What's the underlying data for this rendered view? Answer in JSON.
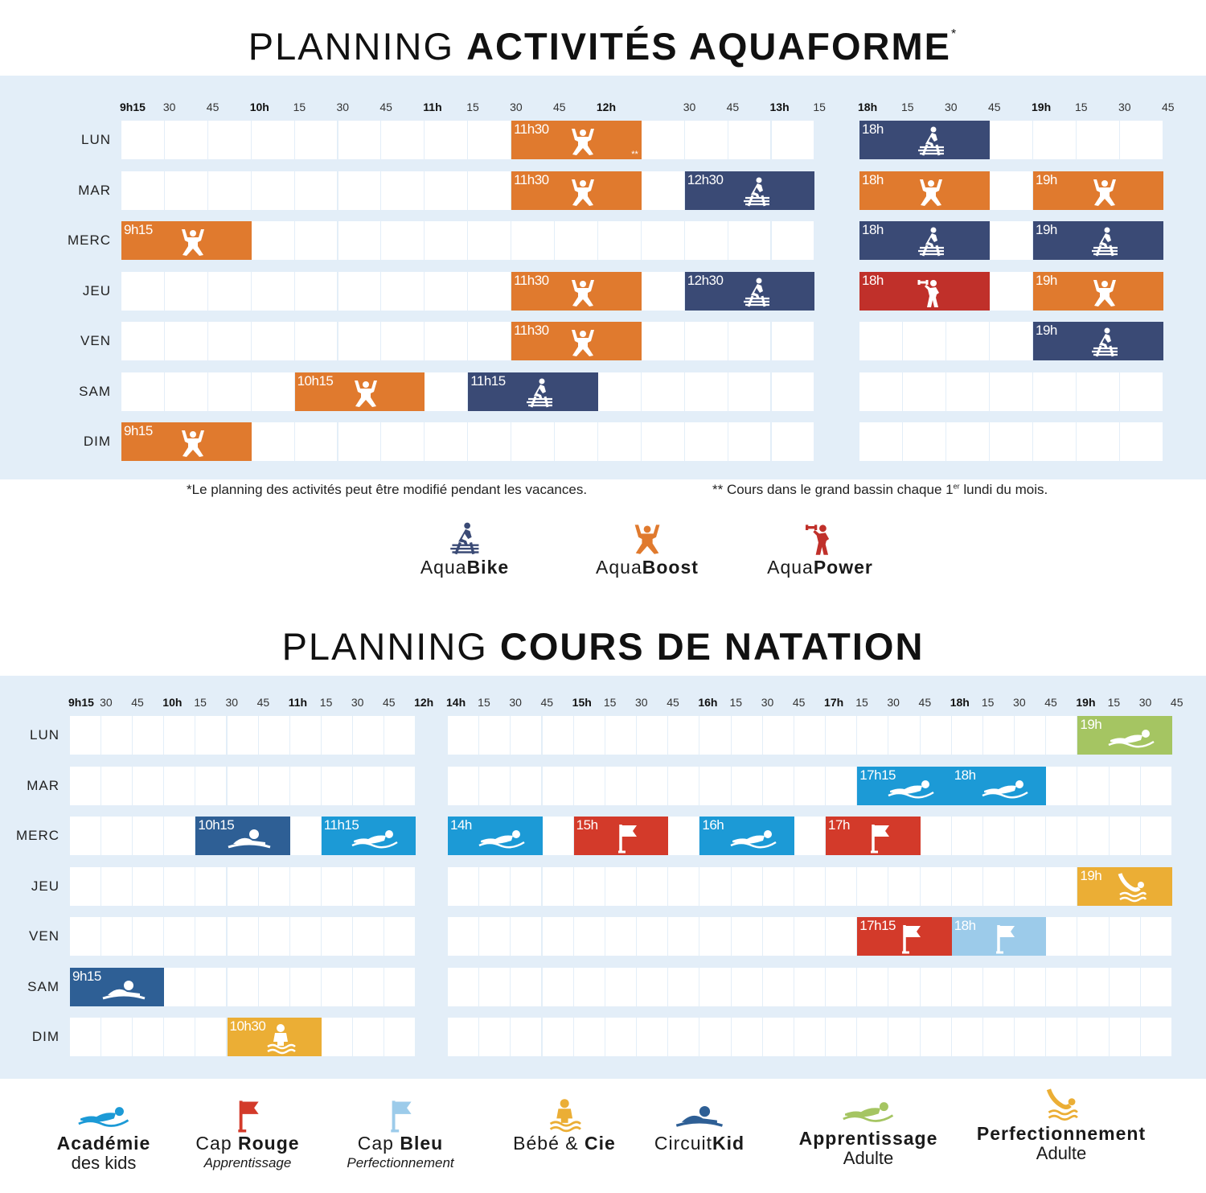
{
  "aquaforme": {
    "title_light": "PLANNING",
    "title_bold": "ACTIVITÉS AQUAFORME",
    "title_mark": "*",
    "days": [
      "LUN",
      "MAR",
      "MERC",
      "JEU",
      "VEN",
      "SAM",
      "DIM"
    ],
    "header_a": [
      "9h15",
      "30",
      "45",
      "10h",
      "15",
      "30",
      "45",
      "11h",
      "15",
      "30",
      "45",
      "12h",
      "",
      "30",
      "45",
      "13h",
      "15"
    ],
    "header_b": [
      "18h",
      "15",
      "30",
      "45",
      "19h",
      "15",
      "30",
      "45"
    ],
    "events": [
      {
        "day": 0,
        "part": "a",
        "start": 9,
        "span": 3,
        "time": "11h30",
        "activity": "aquaboost",
        "note": "**"
      },
      {
        "day": 0,
        "part": "b",
        "start": 0,
        "span": 3,
        "time": "18h",
        "activity": "aquabike"
      },
      {
        "day": 1,
        "part": "a",
        "start": 9,
        "span": 3,
        "time": "11h30",
        "activity": "aquaboost"
      },
      {
        "day": 1,
        "part": "a",
        "start": 13,
        "span": 3,
        "time": "12h30",
        "activity": "aquabike"
      },
      {
        "day": 1,
        "part": "b",
        "start": 0,
        "span": 3,
        "time": "18h",
        "activity": "aquaboost"
      },
      {
        "day": 1,
        "part": "b",
        "start": 4,
        "span": 3,
        "time": "19h",
        "activity": "aquaboost"
      },
      {
        "day": 2,
        "part": "a",
        "start": 0,
        "span": 3,
        "time": "9h15",
        "activity": "aquaboost"
      },
      {
        "day": 2,
        "part": "b",
        "start": 0,
        "span": 3,
        "time": "18h",
        "activity": "aquabike"
      },
      {
        "day": 2,
        "part": "b",
        "start": 4,
        "span": 3,
        "time": "19h",
        "activity": "aquabike"
      },
      {
        "day": 3,
        "part": "a",
        "start": 9,
        "span": 3,
        "time": "11h30",
        "activity": "aquaboost"
      },
      {
        "day": 3,
        "part": "a",
        "start": 13,
        "span": 3,
        "time": "12h30",
        "activity": "aquabike"
      },
      {
        "day": 3,
        "part": "b",
        "start": 0,
        "span": 3,
        "time": "18h",
        "activity": "aquapower"
      },
      {
        "day": 3,
        "part": "b",
        "start": 4,
        "span": 3,
        "time": "19h",
        "activity": "aquaboost"
      },
      {
        "day": 4,
        "part": "a",
        "start": 9,
        "span": 3,
        "time": "11h30",
        "activity": "aquaboost"
      },
      {
        "day": 4,
        "part": "b",
        "start": 4,
        "span": 3,
        "time": "19h",
        "activity": "aquabike"
      },
      {
        "day": 5,
        "part": "a",
        "start": 4,
        "span": 3,
        "time": "10h15",
        "activity": "aquaboost"
      },
      {
        "day": 5,
        "part": "a",
        "start": 8,
        "span": 3,
        "time": "11h15",
        "activity": "aquabike"
      },
      {
        "day": 6,
        "part": "a",
        "start": 0,
        "span": 3,
        "time": "9h15",
        "activity": "aquaboost"
      }
    ],
    "footnote_1": "*Le planning des activités peut être modifié pendant les vacances.",
    "footnote_2_a": "** Cours dans le grand bassin chaque 1",
    "footnote_2_sup": "er",
    "footnote_2_b": " lundi du mois.",
    "legend": [
      {
        "id": "aquabike",
        "light": "Aqua",
        "bold": "Bike",
        "icon": "bike"
      },
      {
        "id": "aquaboost",
        "light": "Aqua",
        "bold": "Boost",
        "icon": "boost"
      },
      {
        "id": "aquapower",
        "light": "Aqua",
        "bold": "Power",
        "icon": "power"
      }
    ]
  },
  "natation": {
    "title_light": "PLANNING",
    "title_bold": "COURS DE NATATION",
    "days": [
      "LUN",
      "MAR",
      "MERC",
      "JEU",
      "VEN",
      "SAM",
      "DIM"
    ],
    "header_a": [
      "9h15",
      "30",
      "45",
      "10h",
      "15",
      "30",
      "45",
      "11h",
      "15",
      "30",
      "45",
      "12h"
    ],
    "header_b": [
      "14h",
      "15",
      "30",
      "45",
      "15h",
      "15",
      "30",
      "45",
      "16h",
      "15",
      "30",
      "45",
      "17h",
      "15",
      "30",
      "45",
      "18h",
      "15",
      "30",
      "45",
      "19h",
      "15",
      "30",
      "45"
    ],
    "events": [
      {
        "day": 0,
        "part": "b",
        "start": 20,
        "span": 3,
        "time": "19h",
        "activity": "apprentissage"
      },
      {
        "day": 1,
        "part": "b",
        "start": 13,
        "span": 3,
        "time": "17h15",
        "activity": "academie"
      },
      {
        "day": 1,
        "part": "b",
        "start": 16,
        "span": 3,
        "time": "18h",
        "activity": "academie"
      },
      {
        "day": 2,
        "part": "a",
        "start": 4,
        "span": 3,
        "time": "10h15",
        "activity": "circuitkid"
      },
      {
        "day": 2,
        "part": "a",
        "start": 8,
        "span": 3,
        "time": "11h15",
        "activity": "academie"
      },
      {
        "day": 2,
        "part": "b",
        "start": 0,
        "span": 3,
        "time": "14h",
        "activity": "academie"
      },
      {
        "day": 2,
        "part": "b",
        "start": 4,
        "span": 3,
        "time": "15h",
        "activity": "caprouge"
      },
      {
        "day": 2,
        "part": "b",
        "start": 8,
        "span": 3,
        "time": "16h",
        "activity": "academie"
      },
      {
        "day": 2,
        "part": "b",
        "start": 12,
        "span": 3,
        "time": "17h",
        "activity": "caprouge"
      },
      {
        "day": 3,
        "part": "b",
        "start": 20,
        "span": 3,
        "time": "19h",
        "activity": "perfectionnement"
      },
      {
        "day": 4,
        "part": "b",
        "start": 13,
        "span": 3,
        "time": "17h15",
        "activity": "caprouge"
      },
      {
        "day": 4,
        "part": "b",
        "start": 16,
        "span": 3,
        "time": "18h",
        "activity": "capbleu"
      },
      {
        "day": 5,
        "part": "a",
        "start": 0,
        "span": 3,
        "time": "9h15",
        "activity": "circuitkid"
      },
      {
        "day": 6,
        "part": "a",
        "start": 5,
        "span": 3,
        "time": "10h30",
        "activity": "bebe"
      }
    ],
    "legend": [
      {
        "id": "academie",
        "light": "",
        "bold": "Académie",
        "line2": "des kids",
        "italic": false,
        "icon": "swim"
      },
      {
        "id": "caprouge",
        "light": "Cap ",
        "bold": "Rouge",
        "line2": "Apprentissage",
        "italic": true,
        "icon": "flag"
      },
      {
        "id": "capbleu",
        "light": "Cap ",
        "bold": "Bleu",
        "line2": "Perfectionnement",
        "italic": true,
        "icon": "flag"
      },
      {
        "id": "bebe",
        "light": "Bébé & ",
        "bold": "Cie",
        "line2": "",
        "italic": false,
        "icon": "baby"
      },
      {
        "id": "circuitkid",
        "light": "Circuit",
        "bold": "Kid",
        "line2": "",
        "italic": false,
        "icon": "kid"
      },
      {
        "id": "apprentissage",
        "light": "",
        "bold": "Apprentissage",
        "line2": "Adulte",
        "italic": false,
        "icon": "swim"
      },
      {
        "id": "perfectionnement",
        "light": "",
        "bold": "Perfectionnement",
        "line2": "Adulte",
        "italic": false,
        "icon": "diver"
      }
    ]
  },
  "colors": {
    "aquabike": "#3A4A75",
    "aquaboost": "#E07A2E",
    "aquapower": "#C0302A",
    "academie": "#1C9AD6",
    "caprouge": "#D33A2A",
    "capbleu": "#9CCBEA",
    "bebe": "#EBAE35",
    "circuitkid": "#2E5F95",
    "apprentissage": "#A5C562",
    "perfectionnement": "#EBAE35",
    "band": "#E3EEF8"
  }
}
